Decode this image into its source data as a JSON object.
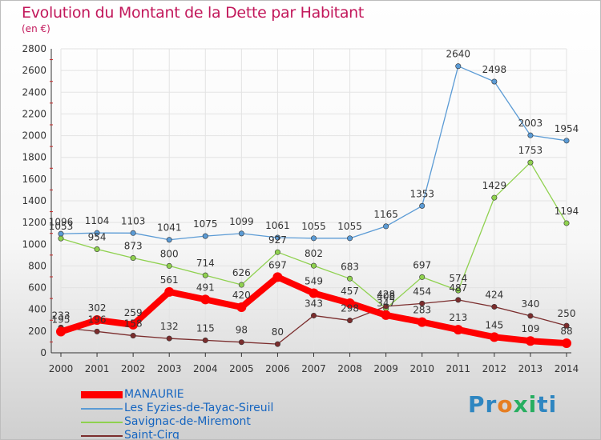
{
  "title": "Evolution du Montant de la Dette par Habitant",
  "unit": "(en €)",
  "logo": {
    "text": "Proxiti",
    "letters": [
      {
        "ch": "P",
        "color": "#2e86c1"
      },
      {
        "ch": "r",
        "color": "#2e86c1"
      },
      {
        "ch": "o",
        "color": "#e67e22"
      },
      {
        "ch": "x",
        "color": "#27ae60"
      },
      {
        "ch": "i",
        "color": "#27ae60"
      },
      {
        "ch": "t",
        "color": "#2e86c1"
      },
      {
        "ch": "i",
        "color": "#2e86c1"
      }
    ]
  },
  "chart_data": {
    "type": "line",
    "title": "Evolution du Montant de la Dette par Habitant",
    "ylabel": "(en €)",
    "xlabel": "",
    "x": [
      2000,
      2001,
      2002,
      2003,
      2004,
      2005,
      2006,
      2007,
      2008,
      2009,
      2010,
      2011,
      2012,
      2013,
      2014
    ],
    "ylim": [
      0,
      2800
    ],
    "yticks": [
      0,
      200,
      400,
      600,
      800,
      1000,
      1200,
      1400,
      1600,
      1800,
      2000,
      2200,
      2400,
      2600,
      2800
    ],
    "grid": true,
    "legend_position": "bottom-left",
    "series": [
      {
        "name": "MANAURIE",
        "color": "#ff0000",
        "width": 8,
        "values": [
          195,
          302,
          259,
          561,
          491,
          420,
          697,
          549,
          457,
          347,
          283,
          213,
          145,
          109,
          88
        ]
      },
      {
        "name": "Les Eyzies-de-Tayac-Sireuil",
        "color": "#5b9bd5",
        "width": 1.3,
        "values": [
          1096,
          1104,
          1103,
          1041,
          1075,
          1099,
          1061,
          1055,
          1055,
          1165,
          1353,
          2640,
          2498,
          2003,
          1954
        ]
      },
      {
        "name": "Savignac-de-Miremont",
        "color": "#8fd14f",
        "width": 1.3,
        "values": [
          1053,
          954,
          873,
          800,
          714,
          626,
          927,
          802,
          683,
          408,
          697,
          574,
          1429,
          1753,
          1194
        ]
      },
      {
        "name": "Saint-Cirq",
        "color": "#7b2d2d",
        "width": 1.3,
        "values": [
          233,
          196,
          158,
          132,
          115,
          98,
          80,
          343,
          298,
          428,
          454,
          487,
          424,
          340,
          250
        ]
      }
    ]
  }
}
